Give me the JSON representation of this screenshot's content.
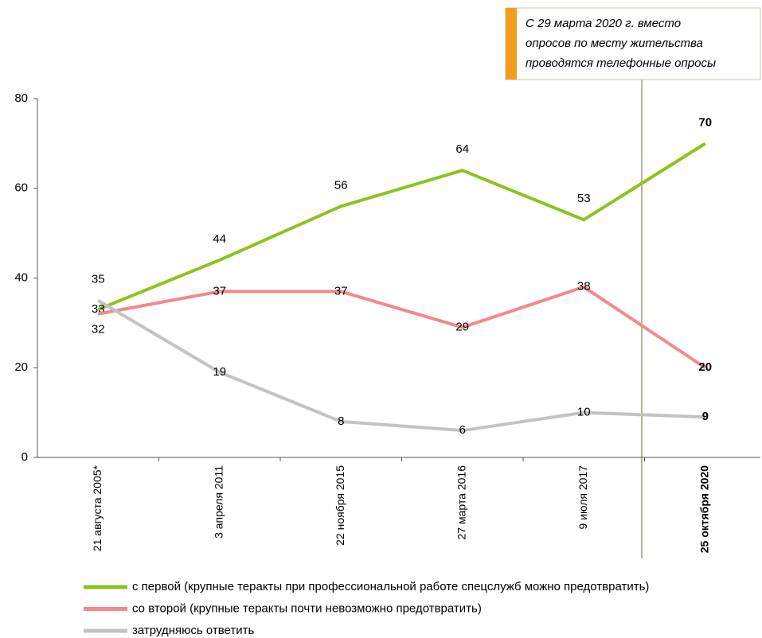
{
  "chart_data": {
    "type": "line",
    "annotation": [
      "С 29 марта 2020 г. вместо",
      "опросов по месту жительства",
      "проводятся телефонные опросы"
    ],
    "categories": [
      "21 августа 2005*",
      "3 апреля 2011",
      "22 ноября 2015",
      "27 марта 2016",
      "9 июля 2017",
      "25 октября 2020"
    ],
    "series": [
      {
        "name": "с первой (крупные теракты при профессиональной работе спецслужб можно предотвратить)",
        "color": "#8dc21f",
        "values": [
          33,
          44,
          56,
          64,
          53,
          70
        ]
      },
      {
        "name": "со второй (крупные теракты почти невозможно предотвратить)",
        "color": "#f4888a",
        "values": [
          32,
          37,
          37,
          29,
          38,
          20
        ]
      },
      {
        "name": "затрудняюсь ответить",
        "color": "#c3c3c3",
        "values": [
          35,
          19,
          8,
          6,
          10,
          9
        ]
      }
    ],
    "ylim": [
      0,
      80
    ],
    "yticks": [
      0,
      20,
      40,
      60,
      80
    ]
  }
}
